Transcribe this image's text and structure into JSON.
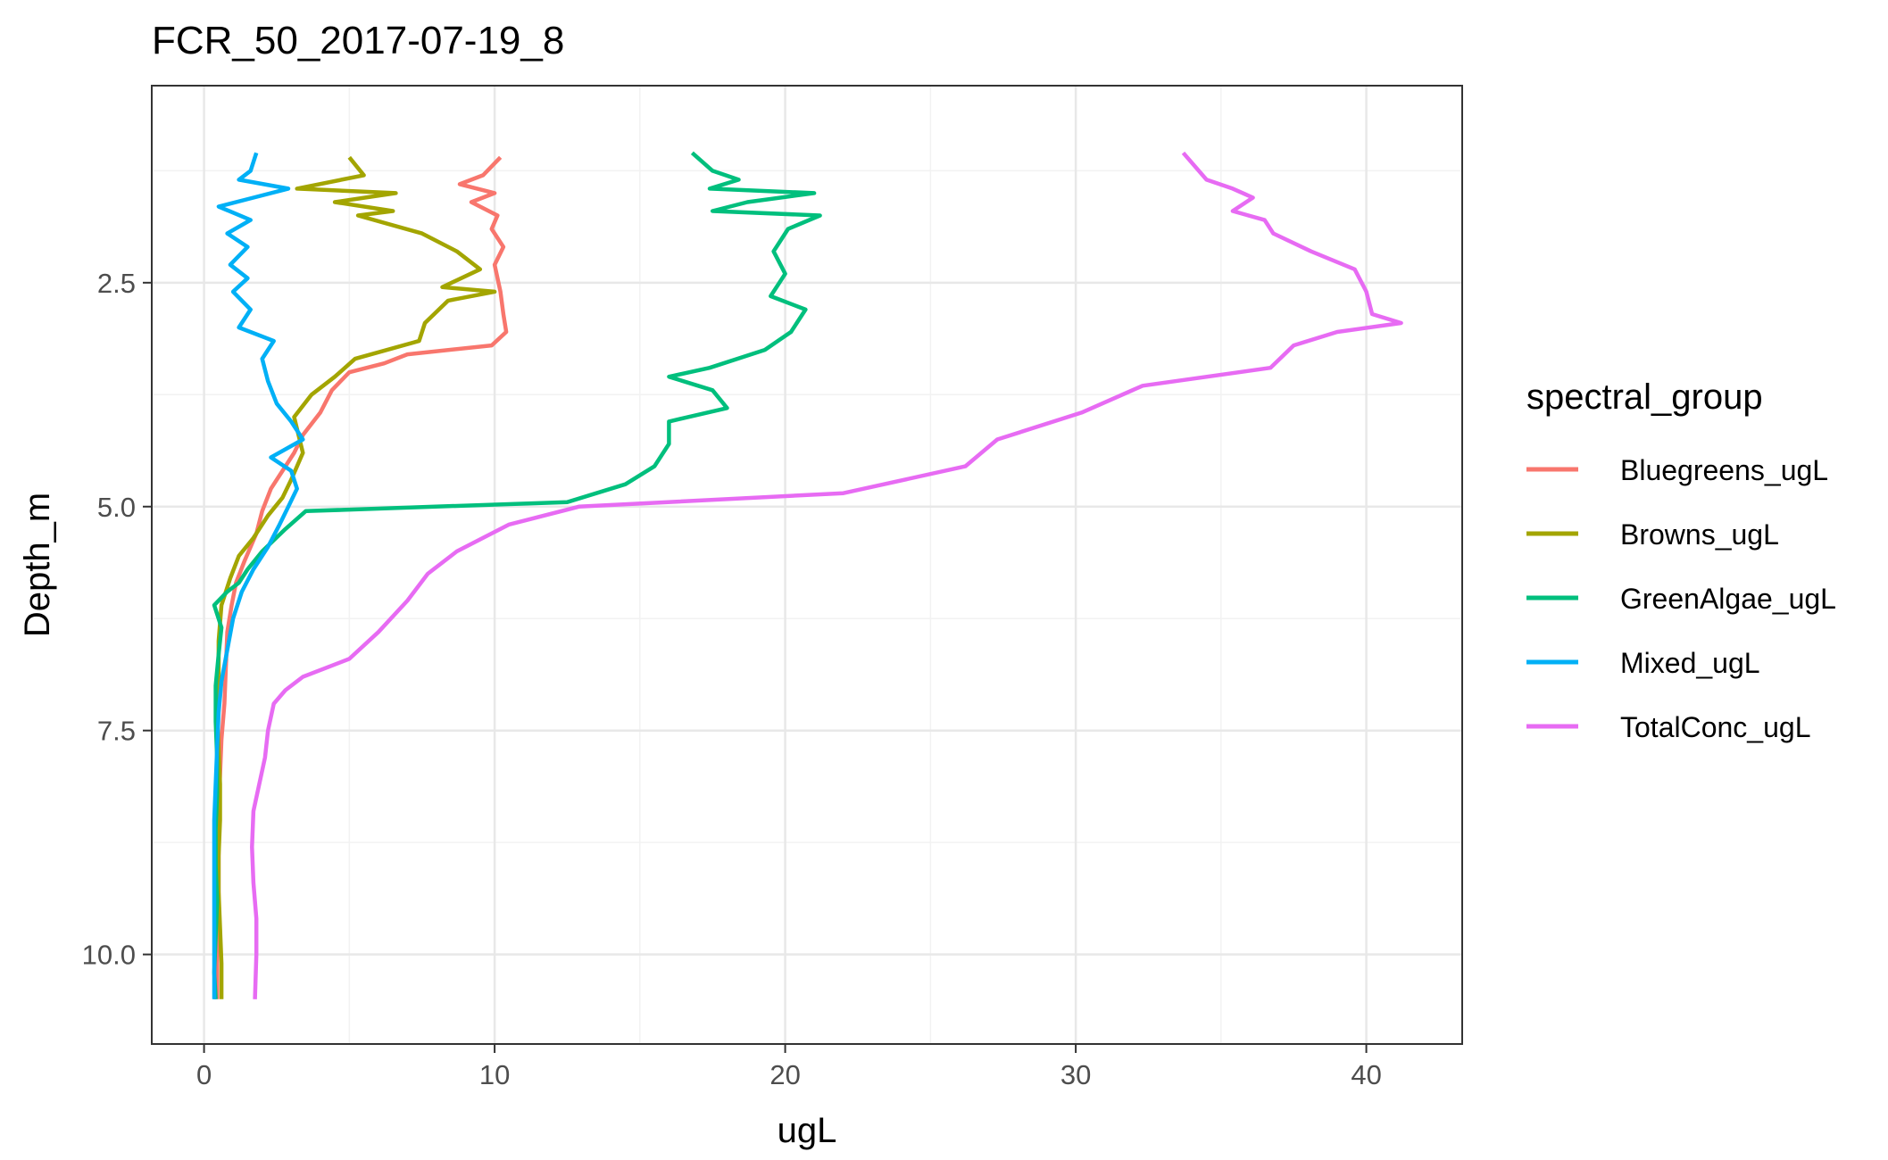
{
  "chart_data": {
    "type": "line",
    "title": "FCR_50_2017-07-19_8",
    "xlabel": "ugL",
    "ylabel": "Depth_m",
    "xlim": [
      -1.8,
      43.3
    ],
    "ylim": [
      0.3,
      11.0
    ],
    "y_reversed": true,
    "x_ticks": [
      0,
      10,
      20,
      30,
      40
    ],
    "x_tick_labels": [
      "0",
      "10",
      "20",
      "30",
      "40"
    ],
    "y_ticks": [
      2.5,
      5.0,
      7.5,
      10.0
    ],
    "y_tick_labels": [
      "2.5",
      "5.0",
      "7.5",
      "10.0"
    ],
    "grid": true,
    "legend_title": "spectral_group",
    "legend_position": "right",
    "series": [
      {
        "name": "Bluegreens_ugL",
        "color": "#F8766D",
        "points": [
          [
            10.2,
            1.1
          ],
          [
            9.6,
            1.3
          ],
          [
            8.8,
            1.4
          ],
          [
            10.0,
            1.5
          ],
          [
            9.2,
            1.6
          ],
          [
            10.1,
            1.75
          ],
          [
            9.9,
            1.9
          ],
          [
            10.3,
            2.1
          ],
          [
            10.0,
            2.3
          ],
          [
            10.2,
            2.6
          ],
          [
            10.3,
            2.85
          ],
          [
            10.4,
            3.05
          ],
          [
            9.9,
            3.2
          ],
          [
            7.0,
            3.3
          ],
          [
            6.2,
            3.4
          ],
          [
            5.0,
            3.5
          ],
          [
            4.4,
            3.7
          ],
          [
            4.0,
            3.95
          ],
          [
            3.4,
            4.2
          ],
          [
            3.1,
            4.4
          ],
          [
            2.7,
            4.6
          ],
          [
            2.5,
            4.7
          ],
          [
            2.3,
            4.8
          ],
          [
            2.0,
            5.05
          ],
          [
            1.8,
            5.3
          ],
          [
            1.4,
            5.6
          ],
          [
            1.1,
            5.85
          ],
          [
            0.95,
            6.1
          ],
          [
            0.8,
            6.4
          ],
          [
            0.75,
            6.8
          ],
          [
            0.7,
            7.2
          ],
          [
            0.6,
            7.6
          ],
          [
            0.55,
            8.0
          ],
          [
            0.5,
            8.4
          ],
          [
            0.5,
            8.8
          ],
          [
            0.5,
            9.2
          ],
          [
            0.5,
            9.6
          ],
          [
            0.45,
            10.0
          ],
          [
            0.45,
            10.5
          ]
        ]
      },
      {
        "name": "Browns_ugL",
        "color": "#A3A500",
        "points": [
          [
            5.0,
            1.1
          ],
          [
            5.5,
            1.3
          ],
          [
            3.2,
            1.45
          ],
          [
            6.6,
            1.5
          ],
          [
            4.5,
            1.6
          ],
          [
            6.5,
            1.7
          ],
          [
            5.3,
            1.75
          ],
          [
            7.5,
            1.95
          ],
          [
            8.7,
            2.15
          ],
          [
            9.5,
            2.35
          ],
          [
            8.2,
            2.55
          ],
          [
            10.0,
            2.6
          ],
          [
            8.4,
            2.7
          ],
          [
            7.6,
            2.95
          ],
          [
            7.4,
            3.15
          ],
          [
            5.2,
            3.35
          ],
          [
            4.5,
            3.55
          ],
          [
            3.7,
            3.75
          ],
          [
            3.1,
            4.0
          ],
          [
            3.4,
            4.4
          ],
          [
            3.0,
            4.7
          ],
          [
            2.7,
            4.9
          ],
          [
            2.2,
            5.1
          ],
          [
            1.7,
            5.35
          ],
          [
            1.2,
            5.55
          ],
          [
            0.9,
            5.8
          ],
          [
            0.6,
            6.1
          ],
          [
            0.5,
            6.5
          ],
          [
            0.5,
            6.9
          ],
          [
            0.45,
            7.3
          ],
          [
            0.5,
            7.7
          ],
          [
            0.55,
            8.1
          ],
          [
            0.55,
            8.5
          ],
          [
            0.5,
            8.9
          ],
          [
            0.5,
            9.3
          ],
          [
            0.55,
            9.7
          ],
          [
            0.6,
            10.1
          ],
          [
            0.6,
            10.5
          ]
        ]
      },
      {
        "name": "GreenAlgae_ugL",
        "color": "#00BF7D",
        "points": [
          [
            16.8,
            1.05
          ],
          [
            17.5,
            1.25
          ],
          [
            18.4,
            1.35
          ],
          [
            17.4,
            1.45
          ],
          [
            21.0,
            1.5
          ],
          [
            18.7,
            1.6
          ],
          [
            17.5,
            1.7
          ],
          [
            21.2,
            1.75
          ],
          [
            20.1,
            1.9
          ],
          [
            19.6,
            2.15
          ],
          [
            20.0,
            2.4
          ],
          [
            19.5,
            2.65
          ],
          [
            20.7,
            2.8
          ],
          [
            20.2,
            3.05
          ],
          [
            19.3,
            3.25
          ],
          [
            17.4,
            3.45
          ],
          [
            16.0,
            3.55
          ],
          [
            17.5,
            3.7
          ],
          [
            18.0,
            3.9
          ],
          [
            16.0,
            4.05
          ],
          [
            16.0,
            4.3
          ],
          [
            15.5,
            4.55
          ],
          [
            14.5,
            4.75
          ],
          [
            12.5,
            4.95
          ],
          [
            3.5,
            5.05
          ],
          [
            2.8,
            5.25
          ],
          [
            2.0,
            5.5
          ],
          [
            1.5,
            5.7
          ],
          [
            1.2,
            5.85
          ],
          [
            0.8,
            5.95
          ],
          [
            0.35,
            6.1
          ],
          [
            0.6,
            6.35
          ],
          [
            0.5,
            6.65
          ],
          [
            0.4,
            7.0
          ],
          [
            0.4,
            7.4
          ],
          [
            0.45,
            7.8
          ],
          [
            0.45,
            8.2
          ],
          [
            0.4,
            8.6
          ],
          [
            0.4,
            9.0
          ],
          [
            0.45,
            9.4
          ],
          [
            0.4,
            9.8
          ],
          [
            0.35,
            10.2
          ],
          [
            0.4,
            10.5
          ]
        ]
      },
      {
        "name": "Mixed_ugL",
        "color": "#00B0F6",
        "points": [
          [
            1.8,
            1.05
          ],
          [
            1.6,
            1.25
          ],
          [
            1.2,
            1.35
          ],
          [
            2.9,
            1.45
          ],
          [
            1.7,
            1.55
          ],
          [
            0.5,
            1.65
          ],
          [
            1.6,
            1.8
          ],
          [
            0.8,
            1.95
          ],
          [
            1.5,
            2.1
          ],
          [
            0.9,
            2.3
          ],
          [
            1.5,
            2.45
          ],
          [
            1.0,
            2.6
          ],
          [
            1.6,
            2.8
          ],
          [
            1.2,
            3.0
          ],
          [
            2.4,
            3.15
          ],
          [
            2.0,
            3.35
          ],
          [
            2.2,
            3.6
          ],
          [
            2.5,
            3.85
          ],
          [
            3.0,
            4.05
          ],
          [
            3.4,
            4.25
          ],
          [
            2.3,
            4.45
          ],
          [
            3.0,
            4.6
          ],
          [
            3.2,
            4.8
          ],
          [
            2.9,
            5.0
          ],
          [
            2.6,
            5.2
          ],
          [
            2.2,
            5.45
          ],
          [
            1.7,
            5.7
          ],
          [
            1.3,
            5.95
          ],
          [
            1.0,
            6.25
          ],
          [
            0.8,
            6.6
          ],
          [
            0.6,
            6.95
          ],
          [
            0.5,
            7.3
          ],
          [
            0.45,
            7.7
          ],
          [
            0.4,
            8.1
          ],
          [
            0.35,
            8.5
          ],
          [
            0.35,
            8.9
          ],
          [
            0.35,
            9.3
          ],
          [
            0.35,
            9.7
          ],
          [
            0.35,
            10.1
          ],
          [
            0.35,
            10.5
          ]
        ]
      },
      {
        "name": "TotalConc_ugL",
        "color": "#E76BF3",
        "points": [
          [
            33.7,
            1.05
          ],
          [
            34.5,
            1.35
          ],
          [
            35.4,
            1.45
          ],
          [
            36.1,
            1.55
          ],
          [
            35.4,
            1.7
          ],
          [
            36.5,
            1.8
          ],
          [
            36.8,
            1.95
          ],
          [
            38.1,
            2.15
          ],
          [
            39.6,
            2.35
          ],
          [
            40.0,
            2.6
          ],
          [
            40.2,
            2.85
          ],
          [
            41.2,
            2.95
          ],
          [
            39.0,
            3.05
          ],
          [
            37.5,
            3.2
          ],
          [
            36.7,
            3.45
          ],
          [
            32.3,
            3.65
          ],
          [
            30.2,
            3.95
          ],
          [
            27.3,
            4.25
          ],
          [
            26.2,
            4.55
          ],
          [
            22.0,
            4.85
          ],
          [
            12.9,
            5.0
          ],
          [
            10.5,
            5.2
          ],
          [
            8.7,
            5.5
          ],
          [
            7.7,
            5.75
          ],
          [
            7.0,
            6.05
          ],
          [
            6.0,
            6.4
          ],
          [
            5.0,
            6.7
          ],
          [
            3.4,
            6.9
          ],
          [
            2.8,
            7.05
          ],
          [
            2.4,
            7.2
          ],
          [
            2.2,
            7.5
          ],
          [
            2.1,
            7.8
          ],
          [
            1.9,
            8.1
          ],
          [
            1.7,
            8.4
          ],
          [
            1.65,
            8.8
          ],
          [
            1.7,
            9.2
          ],
          [
            1.8,
            9.6
          ],
          [
            1.8,
            10.0
          ],
          [
            1.75,
            10.5
          ]
        ]
      }
    ]
  }
}
